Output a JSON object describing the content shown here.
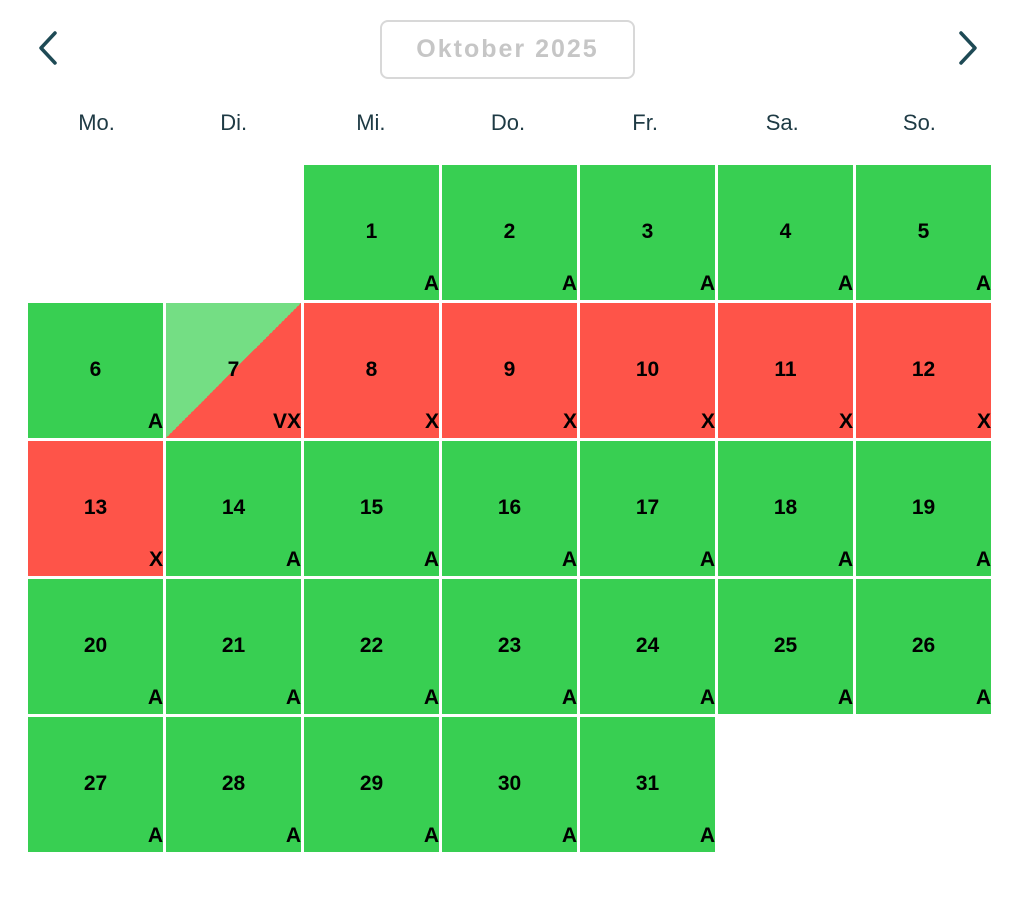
{
  "header": {
    "month_label": "Oktober 2025",
    "prev_icon": "chevron-left-icon",
    "next_icon": "chevron-right-icon",
    "arrow_color": "#1e4a55"
  },
  "weekdays": [
    "Mo.",
    "Di.",
    "Mi.",
    "Do.",
    "Fr.",
    "Sa.",
    "So."
  ],
  "colors": {
    "A": "#38cf52",
    "X": "#fe5449",
    "V": "#74de84"
  },
  "leading_empty_days": 2,
  "days": [
    {
      "day": "1",
      "code": "A"
    },
    {
      "day": "2",
      "code": "A"
    },
    {
      "day": "3",
      "code": "A"
    },
    {
      "day": "4",
      "code": "A"
    },
    {
      "day": "5",
      "code": "A"
    },
    {
      "day": "6",
      "code": "A"
    },
    {
      "day": "7",
      "code": "VX"
    },
    {
      "day": "8",
      "code": "X"
    },
    {
      "day": "9",
      "code": "X"
    },
    {
      "day": "10",
      "code": "X"
    },
    {
      "day": "11",
      "code": "X"
    },
    {
      "day": "12",
      "code": "X"
    },
    {
      "day": "13",
      "code": "X"
    },
    {
      "day": "14",
      "code": "A"
    },
    {
      "day": "15",
      "code": "A"
    },
    {
      "day": "16",
      "code": "A"
    },
    {
      "day": "17",
      "code": "A"
    },
    {
      "day": "18",
      "code": "A"
    },
    {
      "day": "19",
      "code": "A"
    },
    {
      "day": "20",
      "code": "A"
    },
    {
      "day": "21",
      "code": "A"
    },
    {
      "day": "22",
      "code": "A"
    },
    {
      "day": "23",
      "code": "A"
    },
    {
      "day": "24",
      "code": "A"
    },
    {
      "day": "25",
      "code": "A"
    },
    {
      "day": "26",
      "code": "A"
    },
    {
      "day": "27",
      "code": "A"
    },
    {
      "day": "28",
      "code": "A"
    },
    {
      "day": "29",
      "code": "A"
    },
    {
      "day": "30",
      "code": "A"
    },
    {
      "day": "31",
      "code": "A"
    }
  ]
}
